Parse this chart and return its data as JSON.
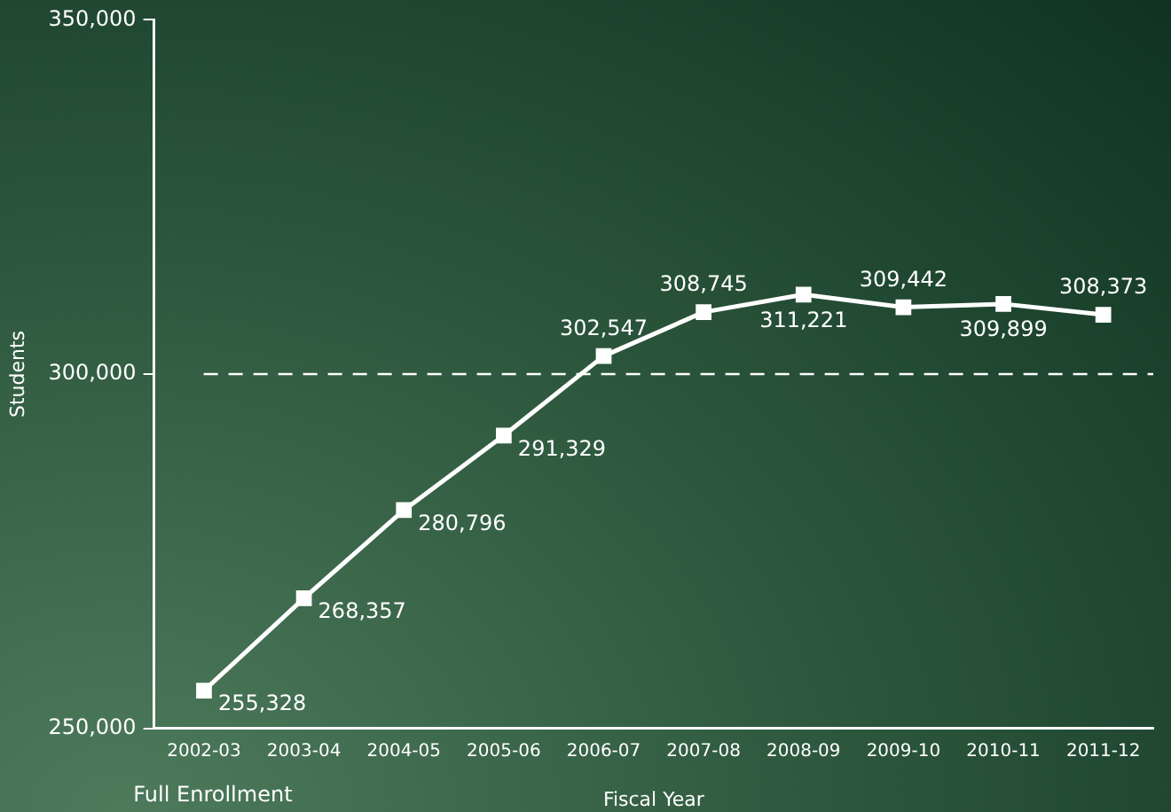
{
  "chart_data": {
    "type": "line",
    "xlabel": "Fiscal Year",
    "ylabel": "Students",
    "annotations": [
      "Full Enrollment"
    ],
    "categories": [
      "2002-03",
      "2003-04",
      "2004-05",
      "2005-06",
      "2006-07",
      "2007-08",
      "2008-09",
      "2009-10",
      "2010-11",
      "2011-12"
    ],
    "series": [
      {
        "color": "#ffffff",
        "values": [
          255328,
          268357,
          280796,
          291329,
          302547,
          308745,
          311221,
          309442,
          309899,
          308373
        ],
        "value_labels": [
          "255,328",
          "268,357",
          "280,796",
          "291,329",
          "302,547",
          "308,745",
          "311,221",
          "309,442",
          "309,899",
          "308,373"
        ]
      }
    ],
    "ylim": [
      250000,
      350000
    ],
    "yticks": [
      {
        "value": 250000,
        "label": "250,000"
      },
      {
        "value": 300000,
        "label": "300,000"
      },
      {
        "value": 350000,
        "label": "350,000"
      }
    ],
    "ref_lines": [
      {
        "axis": "y",
        "value": 300000,
        "color": "#ffffff",
        "line_style": "dashed"
      }
    ],
    "grid": false,
    "legend": false,
    "marker": "square",
    "line_style": "solid"
  }
}
